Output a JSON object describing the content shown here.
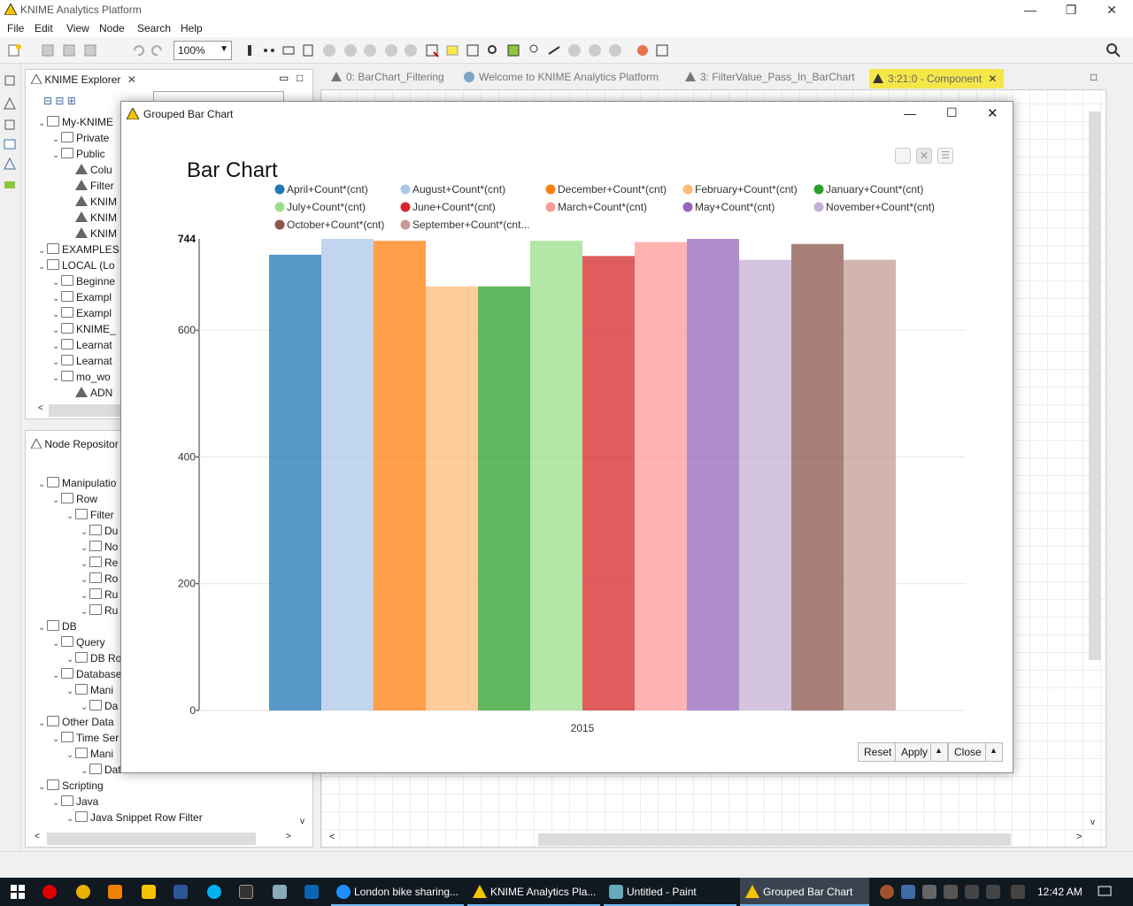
{
  "window": {
    "title": "KNIME Analytics Platform"
  },
  "menu": [
    "File",
    "Edit",
    "View",
    "Node",
    "Search",
    "Help"
  ],
  "toolbar": {
    "zoom": "100%"
  },
  "explorer": {
    "tab_label": "KNIME Explorer",
    "items": [
      {
        "label": "My-KNIME",
        "level": 0,
        "kind": "server"
      },
      {
        "label": "Private",
        "level": 1,
        "kind": "private"
      },
      {
        "label": "Public",
        "level": 1,
        "kind": "public"
      },
      {
        "label": "Colu",
        "level": 2,
        "kind": "workflow"
      },
      {
        "label": "Filter",
        "level": 2,
        "kind": "workflow"
      },
      {
        "label": "KNIM",
        "level": 2,
        "kind": "workflow"
      },
      {
        "label": "KNIM",
        "level": 2,
        "kind": "workflow"
      },
      {
        "label": "KNIM",
        "level": 2,
        "kind": "workflow"
      },
      {
        "label": "EXAMPLES",
        "level": 0,
        "kind": "server"
      },
      {
        "label": "LOCAL (Lo",
        "level": 0,
        "kind": "server"
      },
      {
        "label": "Beginne",
        "level": 1,
        "kind": "folder"
      },
      {
        "label": "Exampl",
        "level": 1,
        "kind": "folder"
      },
      {
        "label": "Exampl",
        "level": 1,
        "kind": "folder"
      },
      {
        "label": "KNIME_",
        "level": 1,
        "kind": "folder"
      },
      {
        "label": "Learnat",
        "level": 1,
        "kind": "folder"
      },
      {
        "label": "Learnat",
        "level": 1,
        "kind": "folder"
      },
      {
        "label": "mo_wo",
        "level": 1,
        "kind": "folder"
      },
      {
        "label": "ADN",
        "level": 2,
        "kind": "workflow"
      }
    ]
  },
  "node_repo": {
    "tab_label": "Node Repositor",
    "items": [
      {
        "label": "Manipulatio",
        "level": 0
      },
      {
        "label": "Row",
        "level": 1
      },
      {
        "label": "Filter",
        "level": 2
      },
      {
        "label": "Du",
        "level": 3
      },
      {
        "label": "No",
        "level": 3
      },
      {
        "label": "Re",
        "level": 3
      },
      {
        "label": "Ro",
        "level": 3
      },
      {
        "label": "Ru",
        "level": 3
      },
      {
        "label": "Ru",
        "level": 3
      },
      {
        "label": "DB",
        "level": 0
      },
      {
        "label": "Query",
        "level": 1
      },
      {
        "label": "DB Ro",
        "level": 2
      },
      {
        "label": "Database",
        "level": 1
      },
      {
        "label": "Mani",
        "level": 2
      },
      {
        "label": "Da",
        "level": 3
      },
      {
        "label": "Other Data",
        "level": 0
      },
      {
        "label": "Time Ser",
        "level": 1
      },
      {
        "label": "Mani",
        "level": 2
      },
      {
        "label": "Date&Time-based Row Filter",
        "level": 3
      },
      {
        "label": "Scripting",
        "level": 0
      },
      {
        "label": "Java",
        "level": 1
      },
      {
        "label": "Java Snippet Row Filter",
        "level": 2
      }
    ]
  },
  "editor_tabs": [
    {
      "label": "0: BarChart_Filtering"
    },
    {
      "label": "Welcome to KNIME Analytics Platform"
    },
    {
      "label": "3: FilterValue_Pass_In_BarChart"
    },
    {
      "label": "3:21:0 - Component"
    }
  ],
  "dialog": {
    "title": "Grouped Bar Chart",
    "buttons": {
      "reset": "Reset",
      "apply": "Apply",
      "close": "Close"
    }
  },
  "chart_data": {
    "type": "bar",
    "title": "Bar Chart",
    "categories": [
      "2015"
    ],
    "ylim": [
      0,
      744
    ],
    "y_ticks": [
      0,
      200,
      400,
      600
    ],
    "y_max_label": "744",
    "grid": true,
    "legend_position": "top",
    "series": [
      {
        "name": "April+Count*(cnt)",
        "values": [
          719
        ],
        "color": "#1f77b4"
      },
      {
        "name": "August+Count*(cnt)",
        "values": [
          744
        ],
        "color": "#aec7e8"
      },
      {
        "name": "December+Count*(cnt)",
        "values": [
          741
        ],
        "color": "#ff7f0e"
      },
      {
        "name": "February+Count*(cnt)",
        "values": [
          669
        ],
        "color": "#ffbb78"
      },
      {
        "name": "January+Count*(cnt)",
        "values": [
          669
        ],
        "color": "#2ca02c"
      },
      {
        "name": "July+Count*(cnt)",
        "values": [
          741
        ],
        "color": "#98df8a"
      },
      {
        "name": "June+Count*(cnt)",
        "values": [
          717
        ],
        "color": "#d62728"
      },
      {
        "name": "March+Count*(cnt)",
        "values": [
          739
        ],
        "color": "#ff9896"
      },
      {
        "name": "May+Count*(cnt)",
        "values": [
          744
        ],
        "color": "#9467bd"
      },
      {
        "name": "November+Count*(cnt)",
        "values": [
          711
        ],
        "color": "#c5b0d5"
      },
      {
        "name": "October+Count*(cnt)",
        "values": [
          736
        ],
        "color": "#8c564b"
      },
      {
        "name": "September+Count*(cnt)",
        "values": [
          711
        ],
        "color": "#c49c94"
      }
    ],
    "legend_truncated_last": "September+Count*(cnt..."
  },
  "taskbar": {
    "items": [
      {
        "label": "London bike sharing...",
        "active": false
      },
      {
        "label": "KNIME Analytics Pla...",
        "active": false
      },
      {
        "label": "Untitled - Paint",
        "active": false
      },
      {
        "label": "Grouped Bar Chart",
        "active": true
      }
    ],
    "clock": "12:42 AM"
  }
}
